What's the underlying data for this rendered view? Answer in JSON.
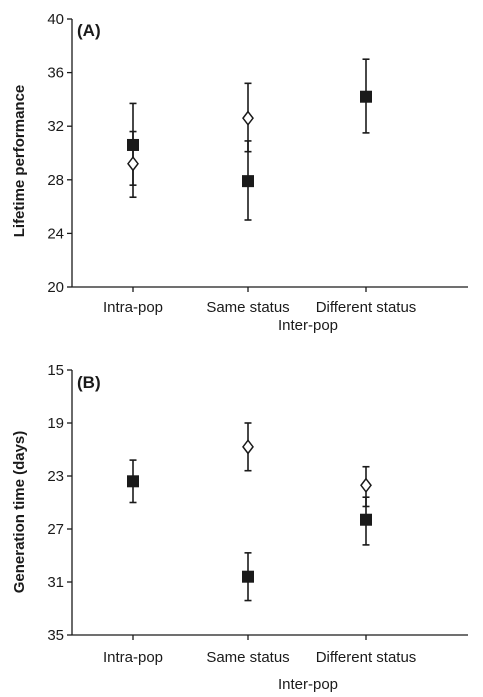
{
  "chart_data": [
    {
      "type": "scatter",
      "panel_label": "(A)",
      "ylabel": "Lifetime performance",
      "ylim": [
        20,
        40
      ],
      "yticks": [
        20,
        24,
        28,
        32,
        36,
        40
      ],
      "y_inverted": false,
      "categories": [
        "Intra-pop",
        "Same status",
        "Different status"
      ],
      "group_label": "Inter-pop",
      "series": [
        {
          "marker": "filled-square",
          "values": [
            30.6,
            27.9,
            34.2
          ],
          "error_low": [
            26.7,
            25.0,
            31.5
          ],
          "error_high": [
            33.7,
            30.9,
            37.0
          ]
        },
        {
          "marker": "open-diamond",
          "values": [
            29.2,
            32.6,
            null
          ],
          "error_low": [
            27.6,
            30.1,
            null
          ],
          "error_high": [
            31.6,
            35.2,
            null
          ]
        }
      ]
    },
    {
      "type": "scatter",
      "panel_label": "(B)",
      "ylabel": "Generation time (days)",
      "ylim": [
        15,
        35
      ],
      "yticks": [
        15,
        19,
        23,
        27,
        31,
        35
      ],
      "y_inverted": true,
      "categories": [
        "Intra-pop",
        "Same status",
        "Different status"
      ],
      "group_label": "Inter-pop",
      "series": [
        {
          "marker": "filled-square",
          "values": [
            23.4,
            30.6,
            26.3
          ],
          "error_low": [
            21.8,
            28.8,
            24.6
          ],
          "error_high": [
            25.0,
            32.4,
            28.2
          ]
        },
        {
          "marker": "open-diamond",
          "values": [
            null,
            20.8,
            23.7
          ],
          "error_low": [
            null,
            19.0,
            22.3
          ],
          "error_high": [
            null,
            22.6,
            25.3
          ]
        }
      ]
    }
  ],
  "colors": {
    "ink": "#1a1a1a",
    "fill": "#1a1a1a",
    "open": "#ffffff"
  }
}
